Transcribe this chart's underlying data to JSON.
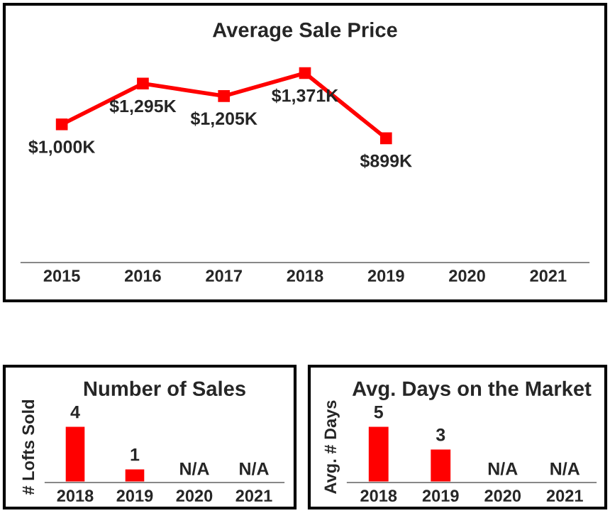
{
  "chart_data": [
    {
      "type": "line",
      "title": "Average Sale Price",
      "categories": [
        "2015",
        "2016",
        "2017",
        "2018",
        "2019",
        "2020",
        "2021"
      ],
      "series": [
        {
          "color": "#ff0000",
          "values": [
            1000,
            1295,
            1205,
            1371,
            899,
            null,
            null
          ],
          "value_labels": [
            "$1,000K",
            "$1,295K",
            "$1,205K",
            "$1,371K",
            "$899K",
            null,
            null
          ]
        }
      ],
      "tick_labels": "x",
      "marker": "square",
      "line_style": "solid",
      "grid": false,
      "legend": false
    },
    {
      "type": "bar",
      "title": "Number of Sales",
      "ylabel": "# Lofts Sold",
      "categories": [
        "2018",
        "2019",
        "2020",
        "2021"
      ],
      "series": [
        {
          "color": "#ff0000",
          "values": [
            4,
            1,
            null,
            null
          ],
          "value_labels": [
            "4",
            "1",
            "N/A",
            "N/A"
          ]
        }
      ],
      "tick_labels": "x",
      "grid": false,
      "legend": false
    },
    {
      "type": "bar",
      "title": "Avg. Days on the Market",
      "ylabel": "Avg. # Days",
      "categories": [
        "2018",
        "2019",
        "2020",
        "2021"
      ],
      "series": [
        {
          "color": "#ff0000",
          "values": [
            5,
            3,
            null,
            null
          ],
          "value_labels": [
            "5",
            "3",
            "N/A",
            "N/A"
          ]
        }
      ],
      "tick_labels": "x",
      "grid": false,
      "legend": false
    }
  ]
}
